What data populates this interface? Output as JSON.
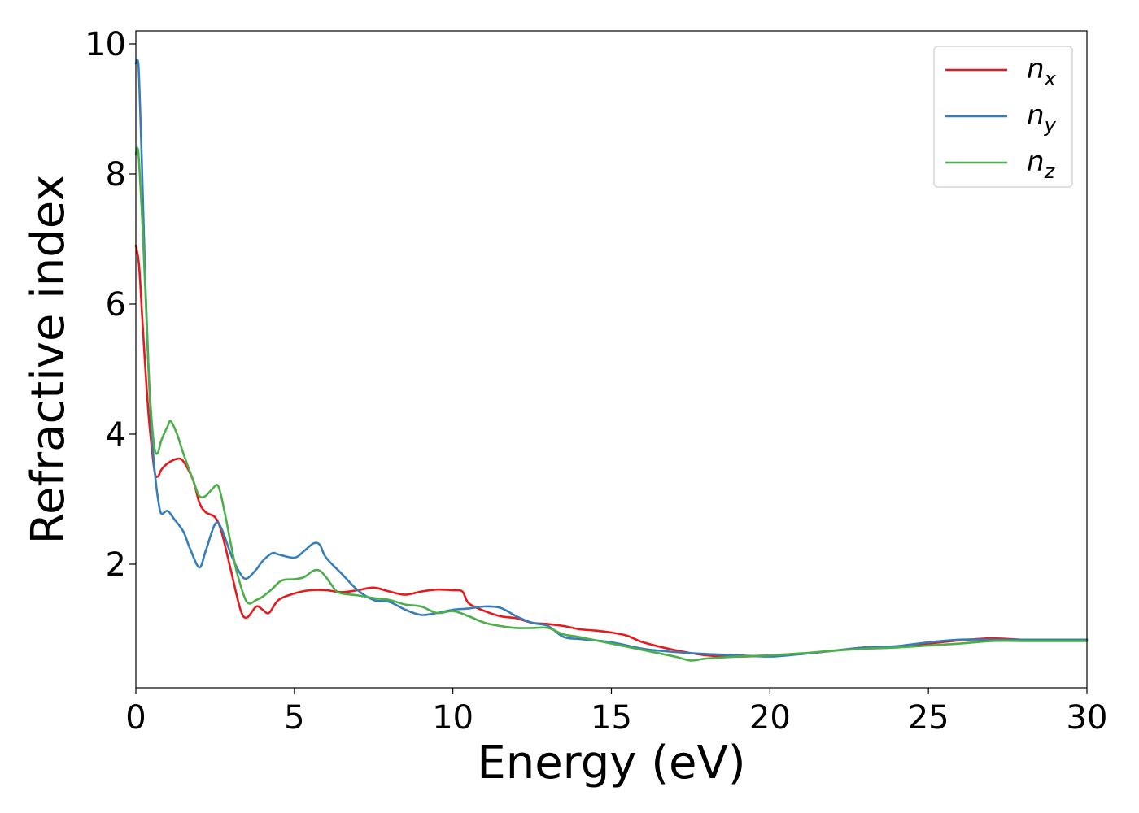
{
  "chart_data": {
    "type": "line",
    "xlabel": "Energy (eV)",
    "ylabel": "Refractive index",
    "xlim": [
      0,
      30
    ],
    "ylim": [
      0.1,
      10.2
    ],
    "xticks": [
      0,
      5,
      10,
      15,
      20,
      25,
      30
    ],
    "yticks": [
      2,
      4,
      6,
      8,
      10
    ],
    "grid": false,
    "legend_position": "top-right",
    "series": [
      {
        "name": "n_x",
        "label_base": "n",
        "label_sub": "x",
        "color": "#e41a1c",
        "x": [
          0,
          0.1,
          0.2,
          0.3,
          0.4,
          0.5,
          0.6,
          0.7,
          0.8,
          1.0,
          1.3,
          1.5,
          1.8,
          2.0,
          2.2,
          2.5,
          2.7,
          3.0,
          3.3,
          3.5,
          3.8,
          4.0,
          4.2,
          4.5,
          5.0,
          5.5,
          6.0,
          6.5,
          7.0,
          7.5,
          8.0,
          8.5,
          9.0,
          9.5,
          10.0,
          10.3,
          10.5,
          11.0,
          11.5,
          12.0,
          12.5,
          13.0,
          13.5,
          14.0,
          14.5,
          15.0,
          15.5,
          16.0,
          17.0,
          18.0,
          19.0,
          20.0,
          21.0,
          22.0,
          23.0,
          24.0,
          25.0,
          26.0,
          27.0,
          28.0,
          29.0,
          30.0
        ],
        "y": [
          6.9,
          6.6,
          5.8,
          5.0,
          4.3,
          3.8,
          3.4,
          3.35,
          3.45,
          3.55,
          3.62,
          3.58,
          3.3,
          2.95,
          2.8,
          2.72,
          2.5,
          1.9,
          1.3,
          1.18,
          1.35,
          1.3,
          1.25,
          1.45,
          1.55,
          1.6,
          1.6,
          1.57,
          1.6,
          1.64,
          1.58,
          1.53,
          1.58,
          1.61,
          1.6,
          1.58,
          1.4,
          1.28,
          1.2,
          1.17,
          1.1,
          1.08,
          1.05,
          1.0,
          0.98,
          0.95,
          0.9,
          0.8,
          0.68,
          0.6,
          0.58,
          0.6,
          0.62,
          0.67,
          0.72,
          0.73,
          0.78,
          0.83,
          0.86,
          0.84,
          0.84,
          0.84
        ]
      },
      {
        "name": "n_y",
        "label_base": "n",
        "label_sub": "y",
        "color": "#377eb8",
        "x": [
          0,
          0.05,
          0.1,
          0.2,
          0.3,
          0.4,
          0.5,
          0.6,
          0.7,
          0.8,
          1.0,
          1.2,
          1.5,
          1.7,
          2.0,
          2.2,
          2.5,
          2.7,
          3.0,
          3.3,
          3.5,
          3.8,
          4.0,
          4.3,
          4.5,
          5.0,
          5.3,
          5.6,
          5.8,
          6.0,
          6.5,
          7.0,
          7.5,
          8.0,
          8.5,
          9.0,
          9.5,
          10.0,
          10.5,
          11.0,
          11.5,
          12.0,
          12.5,
          13.0,
          13.5,
          14.0,
          15.0,
          16.0,
          17.0,
          18.0,
          19.0,
          20.0,
          21.0,
          22.0,
          23.0,
          24.0,
          25.0,
          26.0,
          27.0,
          28.0,
          29.0,
          30.0
        ],
        "y": [
          9.7,
          9.75,
          9.5,
          8.0,
          6.3,
          5.0,
          4.0,
          3.4,
          3.0,
          2.78,
          2.82,
          2.7,
          2.5,
          2.25,
          1.95,
          2.2,
          2.62,
          2.55,
          2.15,
          1.85,
          1.78,
          1.92,
          2.05,
          2.17,
          2.15,
          2.1,
          2.2,
          2.32,
          2.3,
          2.1,
          1.85,
          1.6,
          1.45,
          1.42,
          1.3,
          1.22,
          1.25,
          1.3,
          1.32,
          1.35,
          1.33,
          1.2,
          1.1,
          1.05,
          0.88,
          0.85,
          0.8,
          0.7,
          0.65,
          0.62,
          0.6,
          0.58,
          0.62,
          0.67,
          0.72,
          0.74,
          0.8,
          0.84,
          0.84,
          0.84,
          0.84,
          0.84
        ]
      },
      {
        "name": "n_z",
        "label_base": "n",
        "label_sub": "z",
        "color": "#4daf4a",
        "x": [
          0,
          0.05,
          0.1,
          0.2,
          0.3,
          0.4,
          0.5,
          0.6,
          0.7,
          0.8,
          1.0,
          1.1,
          1.3,
          1.5,
          1.8,
          2.0,
          2.2,
          2.4,
          2.6,
          2.8,
          3.0,
          3.2,
          3.5,
          3.8,
          4.0,
          4.3,
          4.6,
          5.0,
          5.3,
          5.6,
          5.8,
          6.0,
          6.3,
          6.5,
          7.0,
          7.5,
          8.0,
          8.5,
          9.0,
          9.5,
          10.0,
          10.5,
          11.0,
          11.5,
          12.0,
          12.5,
          13.0,
          13.5,
          14.0,
          15.0,
          16.0,
          17.0,
          17.5,
          18.0,
          19.0,
          20.0,
          21.0,
          22.0,
          23.0,
          24.0,
          25.0,
          26.0,
          27.0,
          28.0,
          29.0,
          30.0
        ],
        "y": [
          8.3,
          8.4,
          8.2,
          7.3,
          6.2,
          5.0,
          4.2,
          3.75,
          3.72,
          3.9,
          4.12,
          4.2,
          4.0,
          3.7,
          3.3,
          3.05,
          3.05,
          3.15,
          3.2,
          2.8,
          2.3,
          1.85,
          1.42,
          1.45,
          1.5,
          1.62,
          1.75,
          1.77,
          1.8,
          1.9,
          1.9,
          1.8,
          1.6,
          1.55,
          1.52,
          1.48,
          1.45,
          1.38,
          1.35,
          1.25,
          1.28,
          1.2,
          1.1,
          1.05,
          1.02,
          1.02,
          1.02,
          0.92,
          0.88,
          0.78,
          0.68,
          0.58,
          0.52,
          0.55,
          0.58,
          0.6,
          0.63,
          0.67,
          0.7,
          0.72,
          0.75,
          0.78,
          0.82,
          0.82,
          0.82,
          0.82
        ]
      }
    ]
  }
}
